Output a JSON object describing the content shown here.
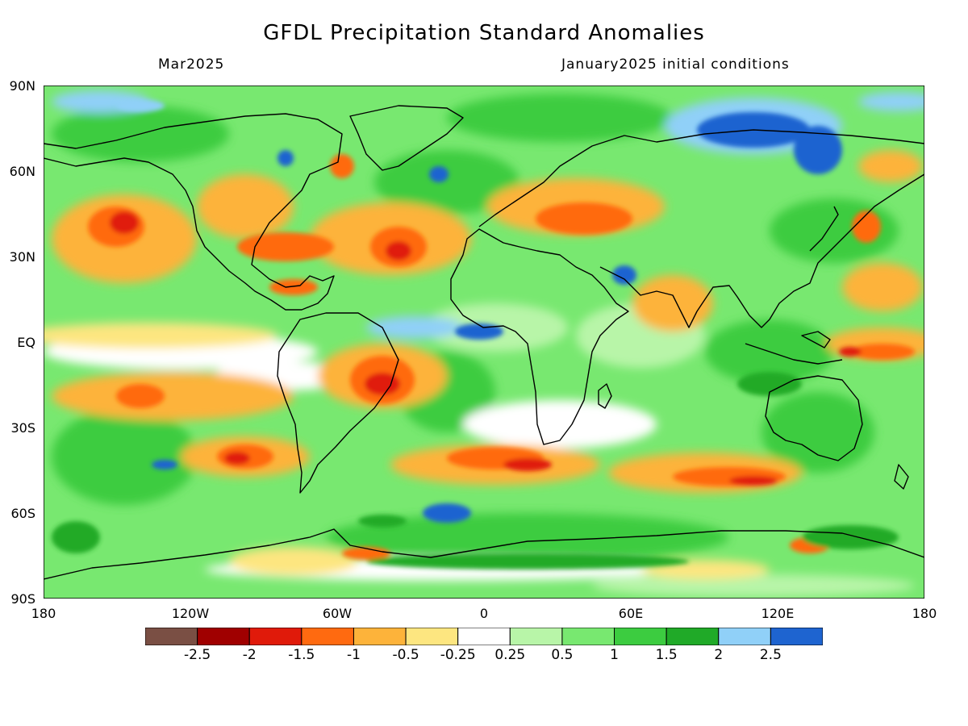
{
  "header": {
    "title": "GFDL Precipitation Standard Anomalies",
    "subtitle_left": "Mar2025",
    "subtitle_right": "January2025 initial conditions"
  },
  "axes": {
    "lat_labels": [
      "90N",
      "60N",
      "30N",
      "EQ",
      "30S",
      "60S",
      "90S"
    ],
    "lon_labels": [
      "180",
      "120W",
      "60W",
      "0",
      "60E",
      "120E",
      "180"
    ]
  },
  "colorbar": {
    "labels": [
      "-2.5",
      "-2",
      "-1.5",
      "-1",
      "-0.5",
      "-0.25",
      "0.25",
      "0.5",
      "1",
      "1.5",
      "2",
      "2.5"
    ],
    "colors": [
      "#7a4f44",
      "#a00000",
      "#e01a0a",
      "#ff6a10",
      "#fdb33a",
      "#fde680",
      "#ffffff",
      "#b8f5a8",
      "#78e870",
      "#3ccc40",
      "#20aa28",
      "#90d0f8",
      "#1e64d0"
    ]
  },
  "map": {
    "ocean_base_color": "#78e870",
    "coastline_color": "#000000"
  }
}
